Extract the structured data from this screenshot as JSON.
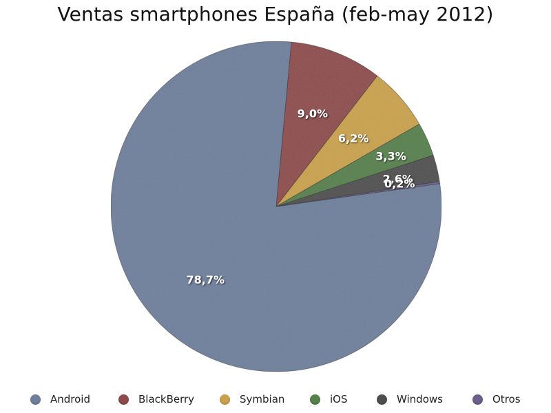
{
  "chart_data": {
    "type": "pie",
    "title": "Ventas smartphones España (feb-may 2012)",
    "slices": [
      {
        "name": "Android",
        "value": 78.7,
        "label": "78,7%",
        "color": "#6e7f9b"
      },
      {
        "name": "BlackBerry",
        "value": 9.0,
        "label": "9,0%",
        "color": "#8e4a4a"
      },
      {
        "name": "Symbian",
        "value": 6.2,
        "label": "6,2%",
        "color": "#c9a24a"
      },
      {
        "name": "iOS",
        "value": 3.3,
        "label": "3,3%",
        "color": "#55804a"
      },
      {
        "name": "Windows",
        "value": 2.6,
        "label": "2,6%",
        "color": "#4e4e4e"
      },
      {
        "name": "Otros",
        "value": 0.2,
        "label": "0,2%",
        "color": "#6c5f8a"
      }
    ],
    "legend_position": "bottom"
  }
}
